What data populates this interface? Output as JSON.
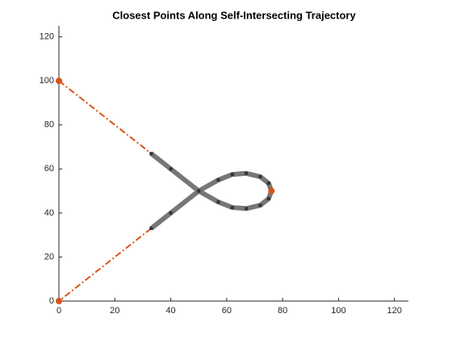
{
  "chart_data": {
    "type": "line",
    "title": "Closest Points Along Self-Intersecting Trajectory",
    "xlim": [
      0,
      125
    ],
    "ylim": [
      0,
      125
    ],
    "xticks": [
      0,
      20,
      40,
      60,
      80,
      100,
      120
    ],
    "yticks": [
      0,
      20,
      40,
      60,
      80,
      100,
      120
    ],
    "series": [
      {
        "color": "#d95319",
        "line_style": "dashdot",
        "marker": "none",
        "x": [
          0,
          33,
          null,
          33,
          0
        ],
        "y": [
          100,
          67,
          null,
          33,
          0
        ]
      },
      {
        "color": "#777777",
        "marker_color": "#333333",
        "line_style": "solid",
        "marker": "square",
        "x": [
          33,
          40,
          50,
          57,
          62,
          67,
          72,
          75,
          76,
          75,
          72,
          67,
          62,
          57,
          50,
          40,
          33
        ],
        "y": [
          67,
          60,
          50,
          45,
          42.5,
          42,
          43.5,
          46.5,
          50,
          53.5,
          56.5,
          58,
          57.5,
          55,
          50,
          40,
          33
        ]
      },
      {
        "color": "#d95319",
        "line_style": "none",
        "marker": "circle",
        "x": [
          0,
          76,
          0
        ],
        "y": [
          100,
          50,
          0
        ]
      }
    ]
  }
}
